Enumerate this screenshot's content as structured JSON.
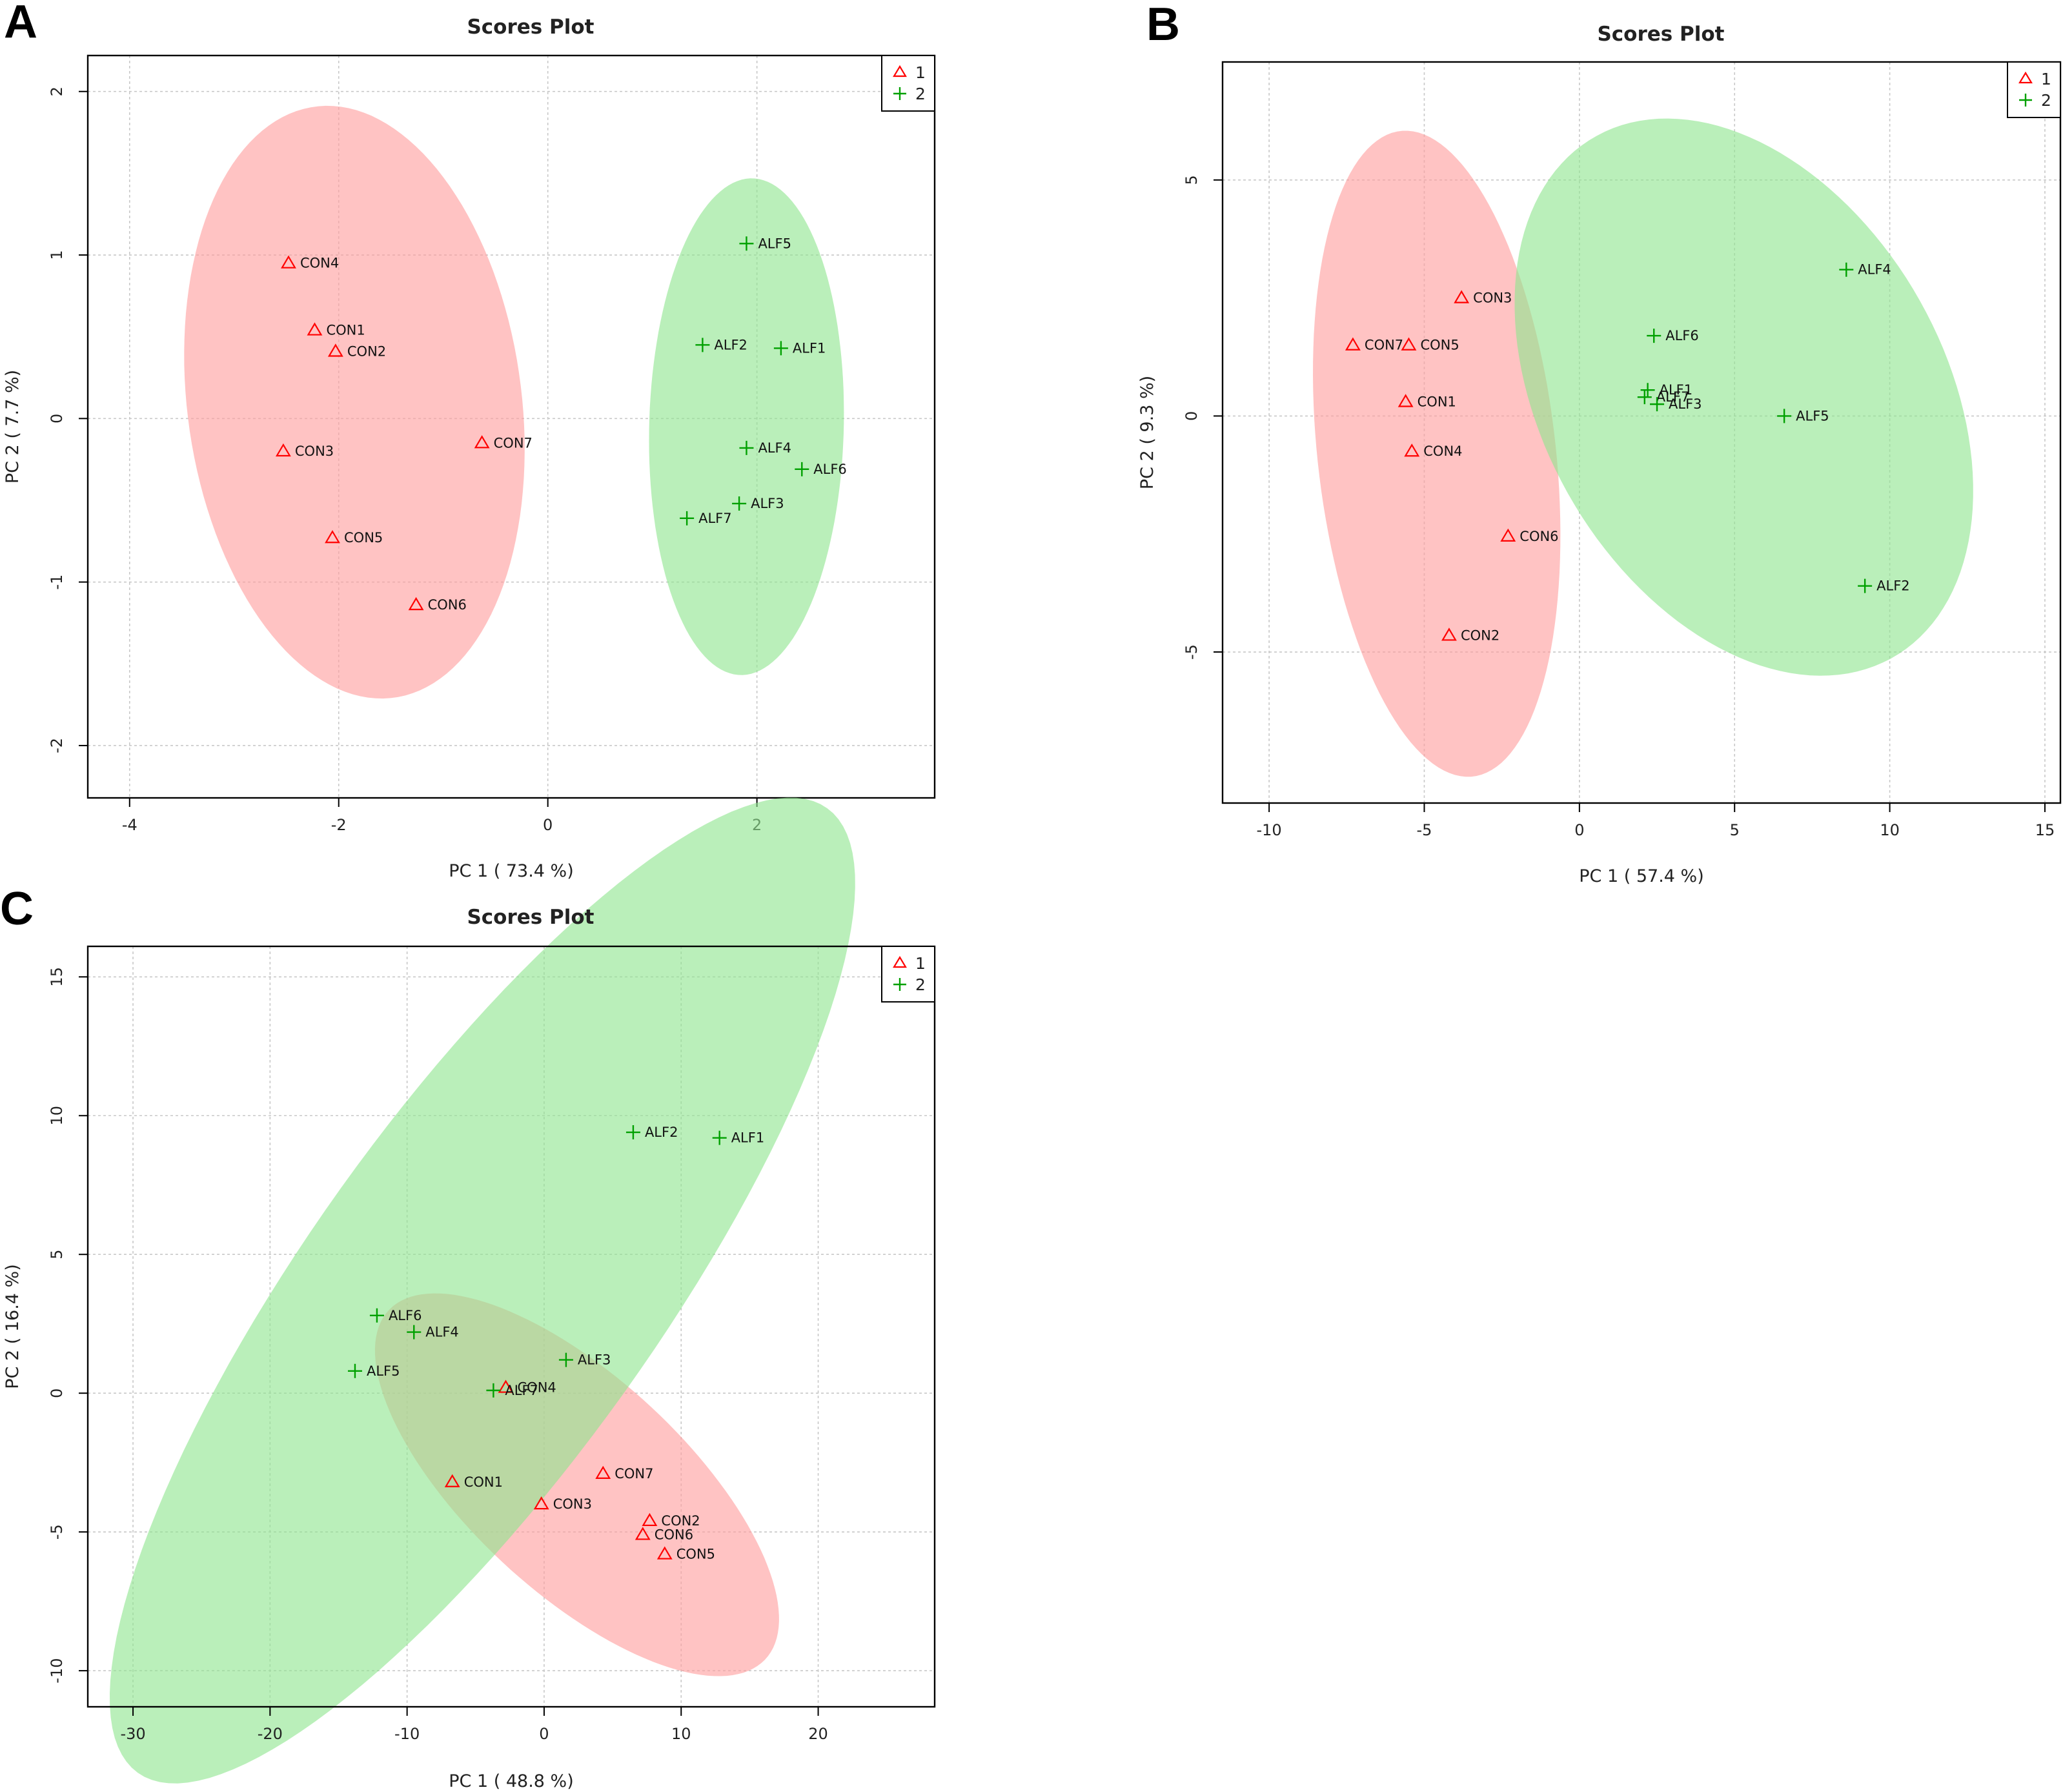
{
  "colors": {
    "group1": "#ff0000",
    "group2": "#00a000",
    "ellipse1": "#ff9e9e",
    "ellipse2": "#8fe58f",
    "grid": "#c8c8c8",
    "frame": "#000000"
  },
  "chart_data": [
    {
      "panel": "A",
      "type": "scatter",
      "title": "Scores Plot",
      "xlabel": "PC 1 ( 73.4 %)",
      "ylabel": "PC 2 ( 7.7 %)",
      "xlim": [
        -4.4,
        3.7
      ],
      "ylim": [
        -2.32,
        2.22
      ],
      "xticks": [
        -4,
        -2,
        0,
        2
      ],
      "yticks": [
        -2,
        -1,
        0,
        1,
        2
      ],
      "legend": {
        "position": "top-right",
        "entries": [
          "1",
          "2"
        ]
      },
      "grid": true,
      "series": [
        {
          "name": "1",
          "marker": "triangle",
          "ellipse": {
            "cx": -1.85,
            "cy": 0.1,
            "rx": 1.55,
            "ry": 1.88,
            "angle_deg": 28
          },
          "points": [
            {
              "label": "CON4",
              "x": -2.48,
              "y": 0.95
            },
            {
              "label": "CON1",
              "x": -2.23,
              "y": 0.54
            },
            {
              "label": "CON2",
              "x": -2.03,
              "y": 0.41
            },
            {
              "label": "CON3",
              "x": -2.53,
              "y": -0.2
            },
            {
              "label": "CON7",
              "x": -0.63,
              "y": -0.15
            },
            {
              "label": "CON5",
              "x": -2.06,
              "y": -0.73
            },
            {
              "label": "CON6",
              "x": -1.26,
              "y": -1.14
            }
          ]
        },
        {
          "name": "2",
          "marker": "plus",
          "ellipse": {
            "cx": 1.9,
            "cy": -0.05,
            "rx": 0.93,
            "ry": 1.52,
            "angle_deg": -3
          },
          "points": [
            {
              "label": "ALF5",
              "x": 1.9,
              "y": 1.07
            },
            {
              "label": "ALF2",
              "x": 1.48,
              "y": 0.45
            },
            {
              "label": "ALF1",
              "x": 2.23,
              "y": 0.43
            },
            {
              "label": "ALF4",
              "x": 1.9,
              "y": -0.18
            },
            {
              "label": "ALF6",
              "x": 2.43,
              "y": -0.31
            },
            {
              "label": "ALF3",
              "x": 1.83,
              "y": -0.52
            },
            {
              "label": "ALF7",
              "x": 1.33,
              "y": -0.61
            }
          ]
        }
      ]
    },
    {
      "panel": "B",
      "type": "scatter",
      "title": "Scores Plot",
      "xlabel": "PC 1 ( 57.4 %)",
      "ylabel": "PC 2 ( 9.3 %)",
      "xlim": [
        -11.5,
        15.5
      ],
      "ylim": [
        -8.2,
        7.5
      ],
      "xticks": [
        -10,
        -5,
        0,
        5,
        10,
        15
      ],
      "yticks": [
        -5,
        0,
        5
      ],
      "legend": {
        "position": "top-right",
        "entries": [
          "1",
          "2"
        ]
      },
      "grid": true,
      "series": [
        {
          "name": "1",
          "marker": "triangle",
          "ellipse": {
            "cx": -4.6,
            "cy": -0.8,
            "rx": 3.8,
            "ry": 6.95,
            "angle_deg": 12
          },
          "points": [
            {
              "label": "CON3",
              "x": -3.8,
              "y": 2.5
            },
            {
              "label": "CON7",
              "x": -7.3,
              "y": 1.5
            },
            {
              "label": "CON5",
              "x": -5.5,
              "y": 1.5
            },
            {
              "label": "CON1",
              "x": -5.6,
              "y": 0.3
            },
            {
              "label": "CON4",
              "x": -5.4,
              "y": -0.75
            },
            {
              "label": "CON6",
              "x": -2.3,
              "y": -2.55
            },
            {
              "label": "CON2",
              "x": -4.2,
              "y": -4.65
            }
          ]
        },
        {
          "name": "2",
          "marker": "plus",
          "ellipse": {
            "cx": 5.3,
            "cy": 0.4,
            "rx": 7.9,
            "ry": 5.2,
            "angle_deg": -28
          },
          "points": [
            {
              "label": "ALF4",
              "x": 8.6,
              "y": 3.1
            },
            {
              "label": "ALF6",
              "x": 2.4,
              "y": 1.7
            },
            {
              "label": "ALF1",
              "x": 2.2,
              "y": 0.55
            },
            {
              "label": "ALF7",
              "x": 2.1,
              "y": 0.4
            },
            {
              "label": "ALF3",
              "x": 2.5,
              "y": 0.25
            },
            {
              "label": "ALF5",
              "x": 6.6,
              "y": 0.0
            },
            {
              "label": "ALF2",
              "x": 9.2,
              "y": -3.6
            }
          ]
        }
      ]
    },
    {
      "panel": "C",
      "type": "scatter",
      "title": "Scores Plot",
      "xlabel": "PC 1 ( 48.8 %)",
      "ylabel": "PC 2 ( 16.4 %)",
      "xlim": [
        -33.3,
        28.5
      ],
      "ylim": [
        -11.3,
        16.1
      ],
      "xticks": [
        -30,
        -20,
        -10,
        0,
        10,
        20
      ],
      "yticks": [
        -10,
        -5,
        0,
        5,
        10,
        15
      ],
      "legend": {
        "position": "top-right",
        "entries": [
          "1",
          "2"
        ]
      },
      "grid": true,
      "series": [
        {
          "name": "1",
          "marker": "triangle",
          "ellipse": {
            "cx": 2.4,
            "cy": -3.3,
            "rx": 15.6,
            "ry": 4.65,
            "angle_deg": -20
          },
          "points": [
            {
              "label": "CON4",
              "x": -2.8,
              "y": 0.2
            },
            {
              "label": "CON7",
              "x": 4.3,
              "y": -2.9
            },
            {
              "label": "CON1",
              "x": -6.7,
              "y": -3.2
            },
            {
              "label": "CON3",
              "x": -0.2,
              "y": -4.0
            },
            {
              "label": "CON2",
              "x": 7.7,
              "y": -4.6
            },
            {
              "label": "CON6",
              "x": 7.2,
              "y": -5.1
            },
            {
              "label": "CON5",
              "x": 8.8,
              "y": -5.8
            }
          ]
        },
        {
          "name": "2",
          "marker": "plus",
          "ellipse": {
            "cx": -4.5,
            "cy": 3.7,
            "rx": 31.3,
            "ry": 8.7,
            "angle_deg": 31
          },
          "points": [
            {
              "label": "ALF2",
              "x": 6.5,
              "y": 9.4
            },
            {
              "label": "ALF1",
              "x": 12.8,
              "y": 9.2
            },
            {
              "label": "ALF6",
              "x": -12.2,
              "y": 2.8
            },
            {
              "label": "ALF4",
              "x": -9.5,
              "y": 2.2
            },
            {
              "label": "ALF3",
              "x": 1.6,
              "y": 1.2
            },
            {
              "label": "ALF5",
              "x": -13.8,
              "y": 0.8
            },
            {
              "label": "ALF7",
              "x": -3.7,
              "y": 0.1
            }
          ]
        }
      ]
    }
  ]
}
